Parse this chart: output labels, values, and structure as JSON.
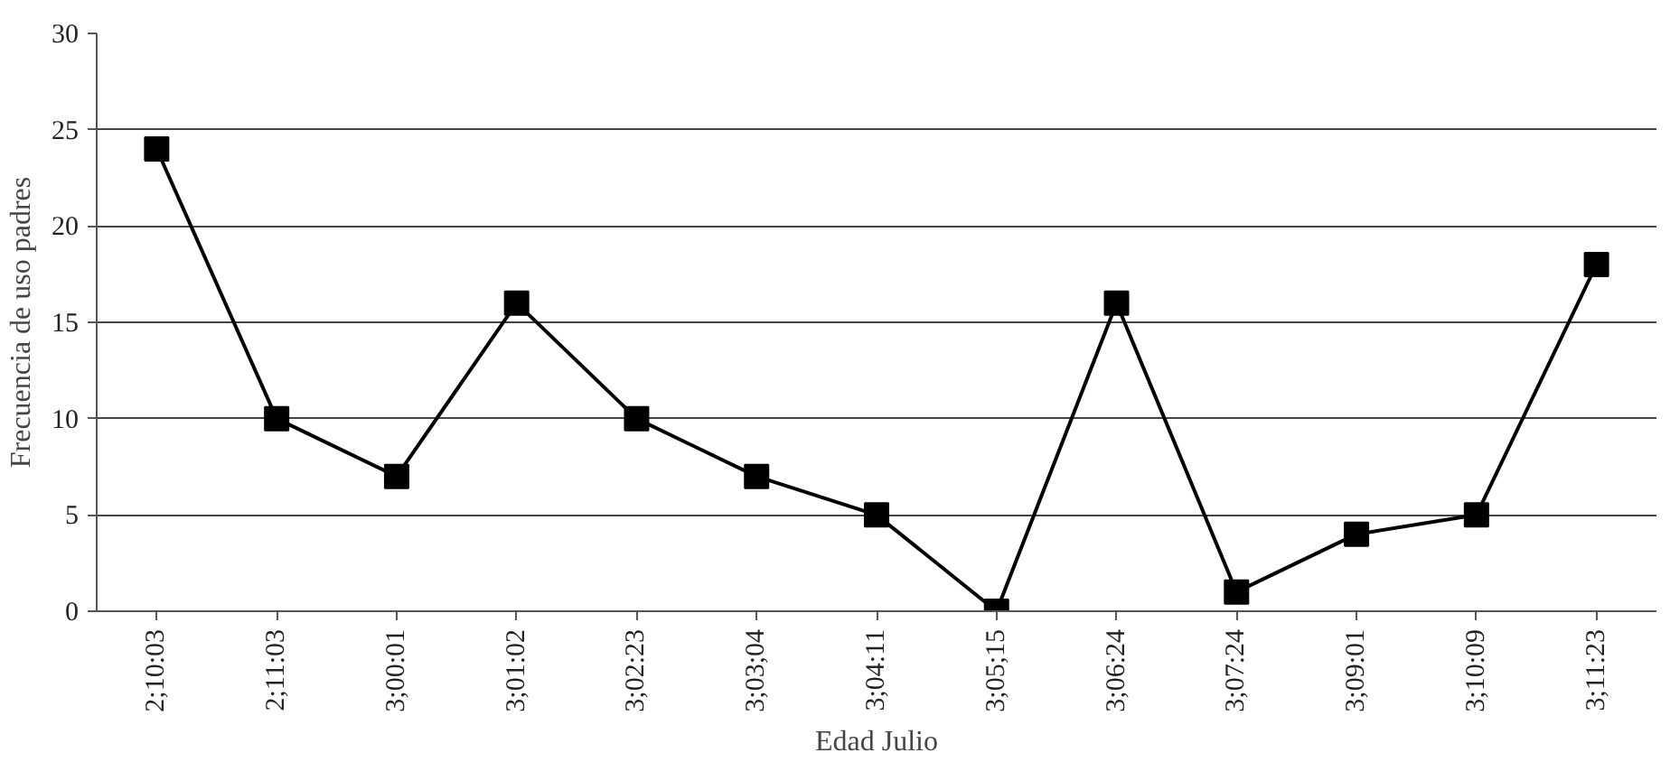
{
  "chart_data": {
    "type": "line",
    "xlabel": "Edad Julio",
    "ylabel": "Frecuencia de uso padres",
    "categories": [
      "2;10:03",
      "2;11:03",
      "3;00:01",
      "3;01:02",
      "3;02:23",
      "3;03;04",
      "3;04:11",
      "3;05;15",
      "3;06:24",
      "3;07:24",
      "3;09:01",
      "3;10:09",
      "3;11:23"
    ],
    "series": [
      {
        "color": "#000000",
        "values": [
          24,
          10,
          7,
          16,
          10,
          7,
          5,
          0,
          16,
          1,
          4,
          5,
          18
        ]
      }
    ],
    "ylim": [
      0,
      30
    ],
    "yticks": [
      0,
      5,
      10,
      15,
      20,
      25,
      30
    ],
    "grid": "y",
    "marker": "square",
    "line_style": "solid"
  }
}
